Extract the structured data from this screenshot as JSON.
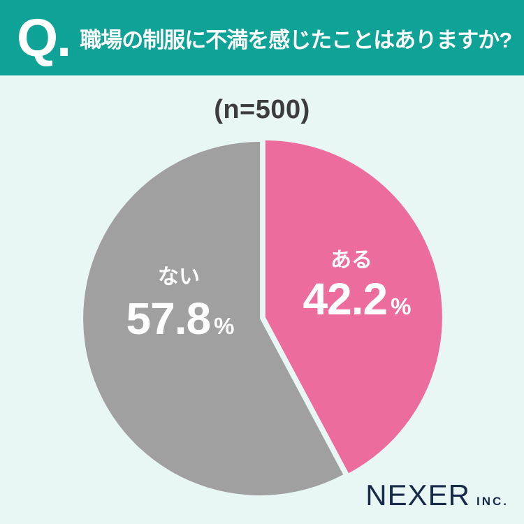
{
  "page": {
    "background_color": "#E8F6F4"
  },
  "header": {
    "background_color": "#0EA396",
    "q_mark": "Q.",
    "title": "職場の制服に不満を感じたことはありますか?"
  },
  "survey": {
    "sample_label": "(n=500)"
  },
  "chart_data": {
    "type": "pie",
    "title": "職場の制服に不満を感じたことはありますか?",
    "sample_size": 500,
    "sample_size_label": "(n=500)",
    "start_angle_deg": 0,
    "direction": "clockwise",
    "slice_gap": true,
    "slices": [
      {
        "key": "aru",
        "label": "ある",
        "value": 42.2,
        "unit": "%",
        "color": "#EC6D9D",
        "text_color": "#FFFFFF"
      },
      {
        "key": "nai",
        "label": "ない",
        "value": 57.8,
        "unit": "%",
        "color": "#A0A0A0",
        "text_color": "#FFFFFF"
      }
    ]
  },
  "footer": {
    "brand": "NEXER",
    "suffix": "INC.",
    "color": "#182A4A"
  },
  "colors": {
    "header_teal": "#0EA396",
    "background_mint": "#E8F6F4",
    "slice_pink": "#EC6D9D",
    "slice_gray": "#A0A0A0",
    "sample_text": "#3C3C3C",
    "brand_navy": "#182A4A"
  }
}
